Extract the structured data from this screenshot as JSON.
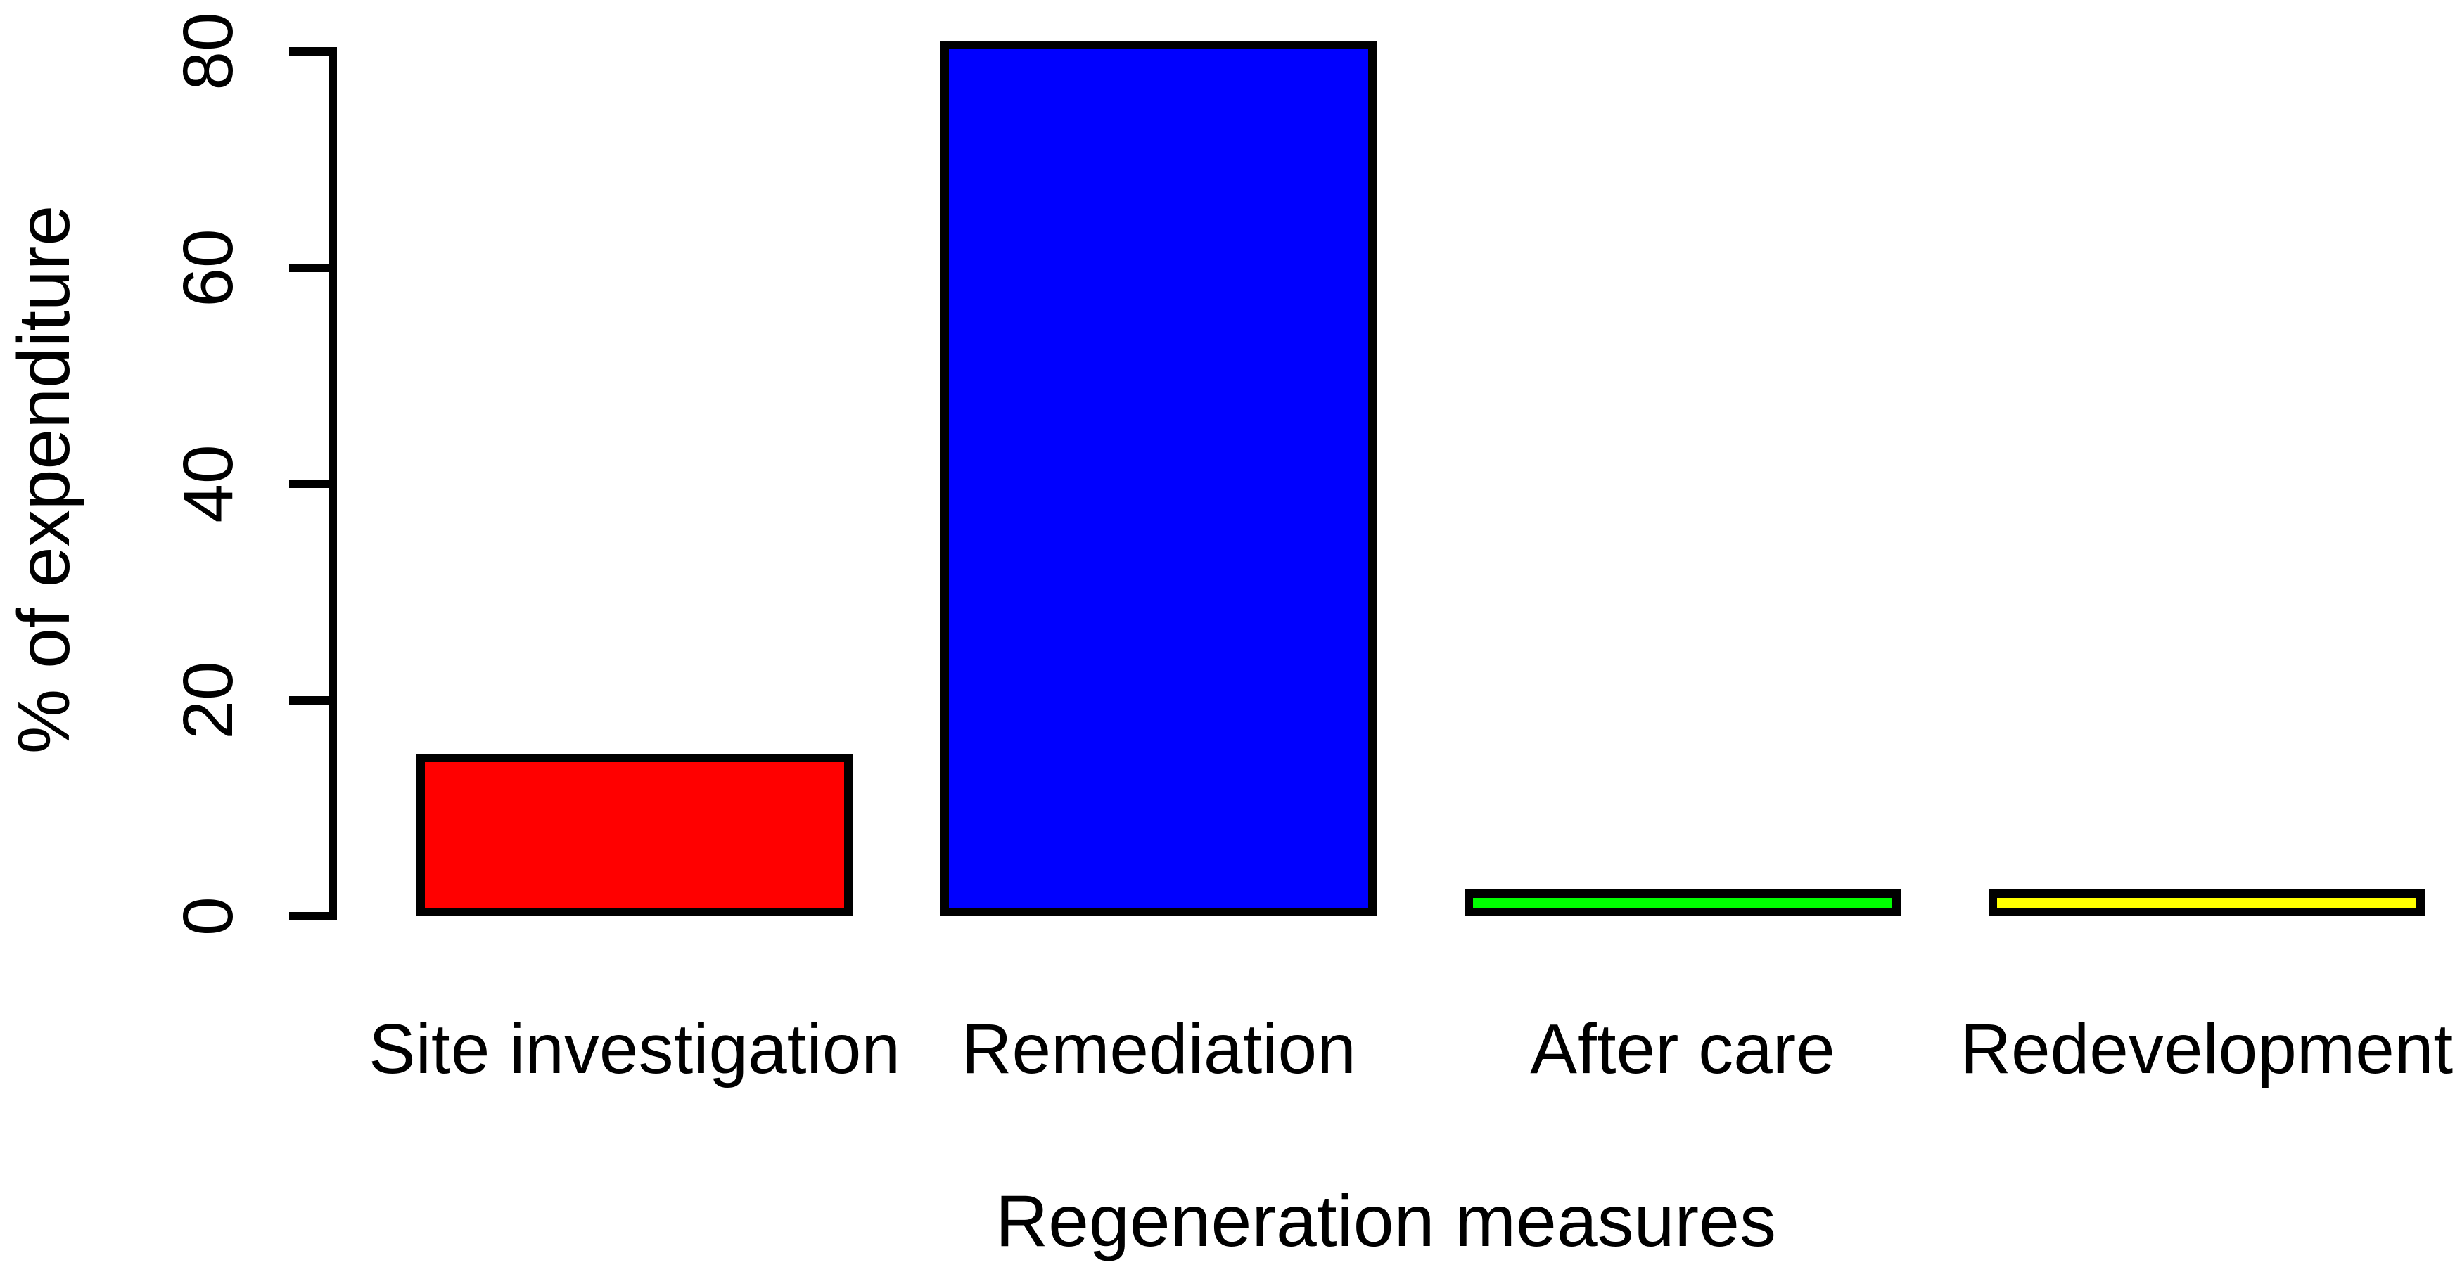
{
  "chart_data": {
    "type": "bar",
    "title": "",
    "xlabel": "Regeneration measures",
    "ylabel": "% of expenditure",
    "categories": [
      "Site investigation",
      "Remediation",
      "After care",
      "Redevelopment"
    ],
    "values": [
      15,
      81,
      2.5,
      2.5
    ],
    "bar_colors": [
      "#ff0000",
      "#0000ff",
      "#00ff00",
      "#ffff00"
    ],
    "bar_border_color": "#000000",
    "axis_color": "#000000",
    "text_color": "#000000",
    "background_color": "#ffffff",
    "ylim": [
      0,
      80
    ],
    "yticks": [
      0,
      20,
      40,
      60,
      80
    ],
    "grid": false,
    "legend": false,
    "orientation": "vertical"
  }
}
